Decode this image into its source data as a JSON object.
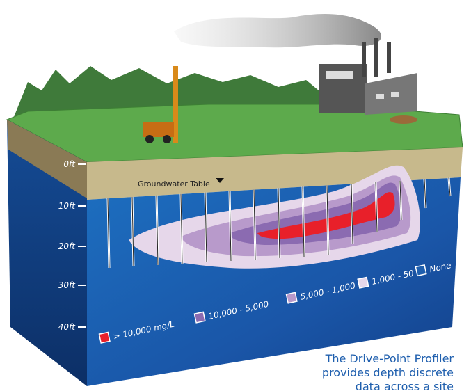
{
  "depth_labels": [
    "0ft",
    "10ft",
    "20ft",
    "30ft",
    "40ft"
  ],
  "groundwater_label": "Groundwater Table",
  "legend": [
    {
      "label": "> 10,000 mg/L",
      "color": "#e8202a"
    },
    {
      "label": "10,000 - 5,000",
      "color": "#8b6bb1"
    },
    {
      "label": "5,000 - 1,000",
      "color": "#b89acb"
    },
    {
      "label": "1,000 - 50",
      "color": "#e6d7ea"
    },
    {
      "label": "None",
      "color": "#1f5fae"
    }
  ],
  "caption": [
    "The Drive-Point Profiler",
    "provides depth discrete",
    "data across a site"
  ]
}
